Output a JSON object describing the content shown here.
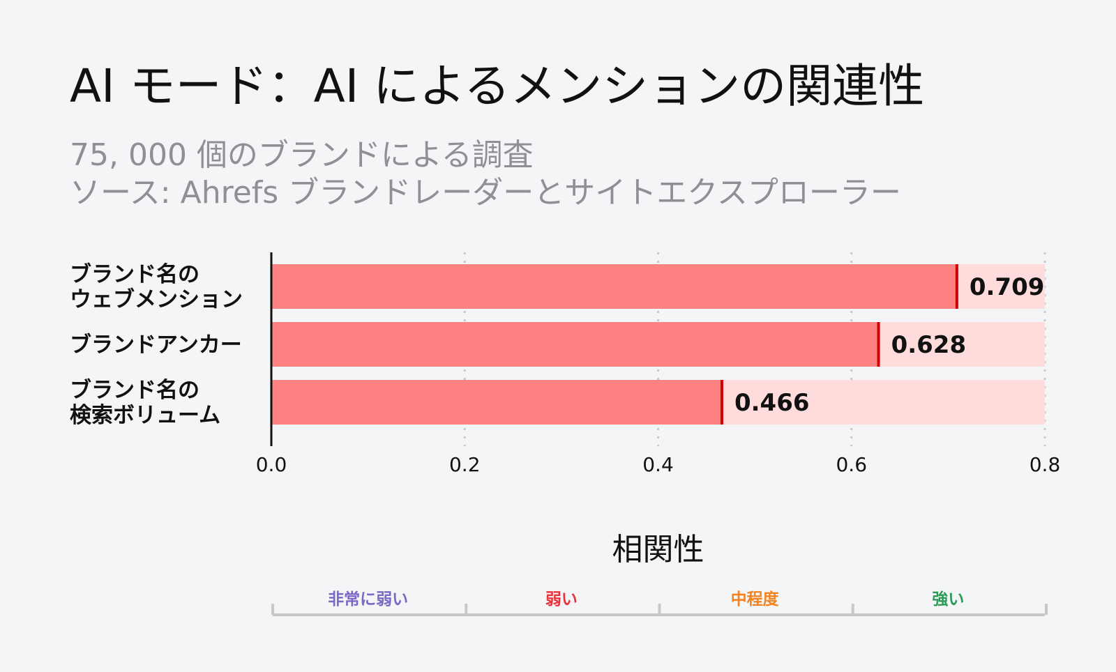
{
  "title": "AI モード：AI によるメンションの関連性",
  "subtitle_line1": "75, 000 個のブランドによる調査",
  "subtitle_line2": "ソース: Ahrefs ブランドレーダーとサイトエクスプローラー",
  "chart_data": {
    "type": "bar",
    "orientation": "horizontal",
    "categories": [
      [
        "ブランド名の",
        "ウェブメンション"
      ],
      [
        "ブランドアンカー"
      ],
      [
        "ブランド名の",
        "検索ボリューム"
      ]
    ],
    "values": [
      0.709,
      0.628,
      0.466
    ],
    "value_labels": [
      "0.709",
      "0.628",
      "0.466"
    ],
    "xlim": [
      0,
      0.8
    ],
    "xticks": [
      0.0,
      0.2,
      0.4,
      0.6,
      0.8
    ],
    "xtick_labels": [
      "0.0",
      "0.2",
      "0.4",
      "0.6",
      "0.8"
    ],
    "xlabel": "相関性",
    "grid": "vertical dotted",
    "colors": {
      "bar": "#ff8282",
      "track": "#ffdcdc",
      "marker": "#cc0000",
      "axis": "#111111",
      "grid": "#c9c9c9"
    },
    "strength_scale": [
      {
        "label": "非常に弱い",
        "color": "#7b68c4"
      },
      {
        "label": "弱い",
        "color": "#e8333b"
      },
      {
        "label": "中程度",
        "color": "#f5821f"
      },
      {
        "label": "強い",
        "color": "#2e9a57"
      }
    ]
  }
}
